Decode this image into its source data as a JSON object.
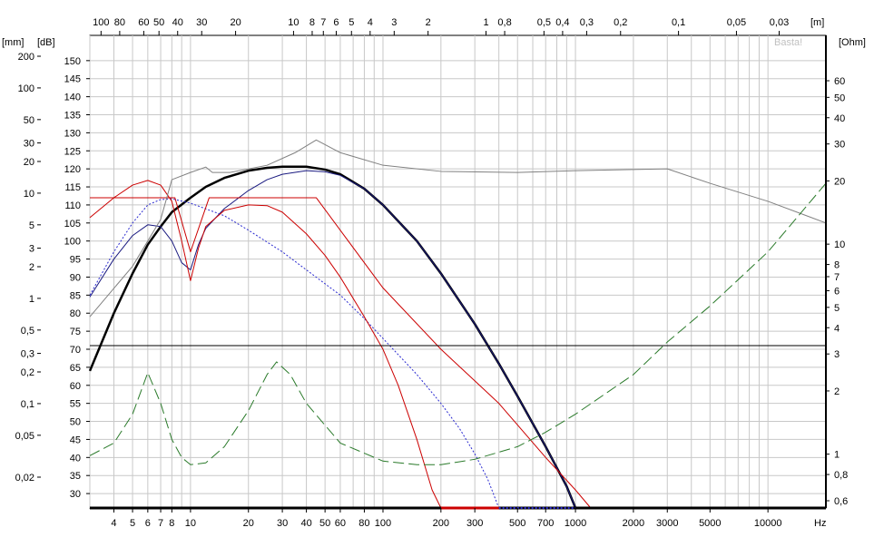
{
  "chart_data": {
    "type": "line",
    "title": "",
    "watermark": "Basta!",
    "axes": {
      "x": {
        "label": "Hz",
        "scale": "log",
        "range": [
          3,
          20000
        ],
        "ticks": [
          {
            "v": 4,
            "t": "4"
          },
          {
            "v": 5,
            "t": "5"
          },
          {
            "v": 6,
            "t": "6"
          },
          {
            "v": 7,
            "t": "7"
          },
          {
            "v": 8,
            "t": "8"
          },
          {
            "v": 10,
            "t": "10"
          },
          {
            "v": 20,
            "t": "20"
          },
          {
            "v": 30,
            "t": "30"
          },
          {
            "v": 40,
            "t": "40"
          },
          {
            "v": 50,
            "t": "50"
          },
          {
            "v": 60,
            "t": "60"
          },
          {
            "v": 80,
            "t": "80"
          },
          {
            "v": 100,
            "t": "100"
          },
          {
            "v": 200,
            "t": "200"
          },
          {
            "v": 300,
            "t": "300"
          },
          {
            "v": 500,
            "t": "500"
          },
          {
            "v": 700,
            "t": "700"
          },
          {
            "v": 1000,
            "t": "1000"
          },
          {
            "v": 2000,
            "t": "2000"
          },
          {
            "v": 3000,
            "t": "3000"
          },
          {
            "v": 5000,
            "t": "5000"
          },
          {
            "v": 10000,
            "t": "10000"
          }
        ]
      },
      "x_top": {
        "label": "[m]",
        "unit_note": "wavelength",
        "ticks": [
          {
            "m": 100,
            "t": "100"
          },
          {
            "m": 80,
            "t": "80"
          },
          {
            "m": 60,
            "t": "60"
          },
          {
            "m": 50,
            "t": "50"
          },
          {
            "m": 40,
            "t": "40"
          },
          {
            "m": 30,
            "t": "30"
          },
          {
            "m": 20,
            "t": "20"
          },
          {
            "m": 10,
            "t": "10"
          },
          {
            "m": 8,
            "t": "8"
          },
          {
            "m": 7,
            "t": "7"
          },
          {
            "m": 6,
            "t": "6"
          },
          {
            "m": 5,
            "t": "5"
          },
          {
            "m": 4,
            "t": "4"
          },
          {
            "m": 3,
            "t": "3"
          },
          {
            "m": 2,
            "t": "2"
          },
          {
            "m": 1,
            "t": "1"
          },
          {
            "m": 0.8,
            "t": "0,8"
          },
          {
            "m": 0.5,
            "t": "0,5"
          },
          {
            "m": 0.4,
            "t": "0,4"
          },
          {
            "m": 0.3,
            "t": "0,3"
          },
          {
            "m": 0.2,
            "t": "0,2"
          },
          {
            "m": 0.1,
            "t": "0,1"
          },
          {
            "m": 0.05,
            "t": "0,05"
          },
          {
            "m": 0.03,
            "t": "0,03"
          }
        ]
      },
      "y_db": {
        "label": "[dB]",
        "range": [
          26,
          157
        ],
        "ticks": [
          {
            "v": 30,
            "t": "30"
          },
          {
            "v": 35,
            "t": "35"
          },
          {
            "v": 40,
            "t": "40"
          },
          {
            "v": 45,
            "t": "45"
          },
          {
            "v": 50,
            "t": "50"
          },
          {
            "v": 55,
            "t": "55"
          },
          {
            "v": 60,
            "t": "60"
          },
          {
            "v": 65,
            "t": "65"
          },
          {
            "v": 70,
            "t": "70"
          },
          {
            "v": 75,
            "t": "75"
          },
          {
            "v": 80,
            "t": "80"
          },
          {
            "v": 85,
            "t": "85"
          },
          {
            "v": 90,
            "t": "90"
          },
          {
            "v": 95,
            "t": "95"
          },
          {
            "v": 100,
            "t": "100"
          },
          {
            "v": 105,
            "t": "105"
          },
          {
            "v": 110,
            "t": "110"
          },
          {
            "v": 115,
            "t": "115"
          },
          {
            "v": 120,
            "t": "120"
          },
          {
            "v": 125,
            "t": "125"
          },
          {
            "v": 130,
            "t": "130"
          },
          {
            "v": 135,
            "t": "135"
          },
          {
            "v": 140,
            "t": "140"
          },
          {
            "v": 145,
            "t": "145"
          },
          {
            "v": 150,
            "t": "150"
          }
        ]
      },
      "y_mm": {
        "label": "[mm]",
        "scale": "log",
        "ticks": [
          {
            "v": 200,
            "t": "200"
          },
          {
            "v": 100,
            "t": "100"
          },
          {
            "v": 50,
            "t": "50"
          },
          {
            "v": 30,
            "t": "30"
          },
          {
            "v": 20,
            "t": "20"
          },
          {
            "v": 10,
            "t": "10"
          },
          {
            "v": 5,
            "t": "5"
          },
          {
            "v": 3,
            "t": "3"
          },
          {
            "v": 2,
            "t": "2"
          },
          {
            "v": 1,
            "t": "1"
          },
          {
            "v": 0.5,
            "t": "0,5"
          },
          {
            "v": 0.3,
            "t": "0,3"
          },
          {
            "v": 0.2,
            "t": "0,2"
          },
          {
            "v": 0.1,
            "t": "0,1"
          },
          {
            "v": 0.05,
            "t": "0,05"
          },
          {
            "v": 0.02,
            "t": "0,02"
          }
        ]
      },
      "y_ohm": {
        "label": "[Ohm]",
        "scale": "log",
        "ticks": [
          {
            "v": 60,
            "t": "60"
          },
          {
            "v": 50,
            "t": "50"
          },
          {
            "v": 40,
            "t": "40"
          },
          {
            "v": 30,
            "t": "30"
          },
          {
            "v": 20,
            "t": "20"
          },
          {
            "v": 10,
            "t": "10"
          },
          {
            "v": 8,
            "t": "8"
          },
          {
            "v": 7,
            "t": "7"
          },
          {
            "v": 6,
            "t": "6"
          },
          {
            "v": 5,
            "t": "5"
          },
          {
            "v": 4,
            "t": "4"
          },
          {
            "v": 3,
            "t": "3"
          },
          {
            "v": 2,
            "t": "2"
          },
          {
            "v": 1,
            "t": "1"
          },
          {
            "v": 0.8,
            "t": "0,8"
          },
          {
            "v": 0.6,
            "t": "0,6"
          }
        ]
      }
    },
    "grid": true,
    "legend": "none",
    "series": [
      {
        "color": "#000000",
        "style": "solid",
        "width": 2.5,
        "axis": "db",
        "points": [
          [
            3,
            64
          ],
          [
            4,
            80
          ],
          [
            5,
            91
          ],
          [
            6,
            99
          ],
          [
            7,
            104
          ],
          [
            8,
            108
          ],
          [
            10,
            112
          ],
          [
            12,
            115
          ],
          [
            15,
            117.5
          ],
          [
            20,
            119.5
          ],
          [
            25,
            120.3
          ],
          [
            30,
            120.6
          ],
          [
            40,
            120.6
          ],
          [
            50,
            119.8
          ],
          [
            60,
            118.5
          ],
          [
            80,
            114.5
          ],
          [
            100,
            110
          ],
          [
            150,
            100
          ],
          [
            200,
            91
          ],
          [
            300,
            77
          ],
          [
            400,
            66
          ],
          [
            500,
            57
          ],
          [
            700,
            43
          ],
          [
            900,
            32
          ],
          [
            1000,
            26
          ]
        ]
      },
      {
        "color": "#1a1a80",
        "style": "solid",
        "width": 1,
        "axis": "db",
        "points": [
          [
            3,
            84.5
          ],
          [
            4,
            95
          ],
          [
            5,
            101.5
          ],
          [
            6,
            104.5
          ],
          [
            7,
            104
          ],
          [
            8,
            100
          ],
          [
            9,
            94
          ],
          [
            10,
            92
          ],
          [
            11,
            99
          ],
          [
            12,
            103.5
          ],
          [
            15,
            109
          ],
          [
            20,
            114
          ],
          [
            25,
            117
          ],
          [
            30,
            118.5
          ],
          [
            40,
            119.5
          ],
          [
            50,
            119.2
          ],
          [
            60,
            118.2
          ],
          [
            80,
            114.5
          ],
          [
            100,
            110
          ],
          [
            150,
            100
          ],
          [
            200,
            91
          ],
          [
            300,
            77
          ],
          [
            400,
            66
          ],
          [
            500,
            57
          ],
          [
            700,
            43
          ],
          [
            900,
            32
          ],
          [
            1000,
            26
          ]
        ]
      },
      {
        "color": "#2a2ad0",
        "style": "dotted",
        "width": 1,
        "axis": "db",
        "points": [
          [
            3,
            85
          ],
          [
            4,
            97
          ],
          [
            5,
            105
          ],
          [
            6,
            110
          ],
          [
            7,
            111.5
          ],
          [
            8,
            111.7
          ],
          [
            10,
            110.5
          ],
          [
            15,
            107
          ],
          [
            20,
            103
          ],
          [
            30,
            97
          ],
          [
            40,
            92
          ],
          [
            60,
            85
          ],
          [
            80,
            78.5
          ],
          [
            100,
            73
          ],
          [
            150,
            63
          ],
          [
            200,
            55
          ],
          [
            250,
            48
          ],
          [
            300,
            41
          ],
          [
            350,
            34
          ],
          [
            400,
            26
          ]
        ]
      },
      {
        "color": "#cc0000",
        "style": "solid",
        "width": 1,
        "axis": "db",
        "points": [
          [
            3,
            106.5
          ],
          [
            4,
            112
          ],
          [
            5,
            115.5
          ],
          [
            6,
            116.8
          ],
          [
            7,
            115.5
          ],
          [
            8,
            111
          ],
          [
            9,
            100
          ],
          [
            10,
            89
          ],
          [
            11,
            98
          ],
          [
            12,
            104
          ],
          [
            15,
            108.5
          ],
          [
            20,
            110
          ],
          [
            25,
            109.8
          ],
          [
            30,
            108
          ],
          [
            40,
            102
          ],
          [
            50,
            96
          ],
          [
            60,
            90
          ],
          [
            80,
            79
          ],
          [
            100,
            70
          ],
          [
            120,
            60
          ],
          [
            150,
            45
          ],
          [
            180,
            31
          ],
          [
            200,
            26
          ]
        ]
      },
      {
        "color": "#cc0000",
        "style": "solid",
        "width": 1,
        "axis": "db",
        "points": [
          [
            3,
            112
          ],
          [
            8.3,
            112
          ],
          [
            10,
            97
          ],
          [
            12.5,
            112
          ],
          [
            45,
            112
          ],
          [
            100,
            87
          ],
          [
            200,
            70
          ],
          [
            400,
            55
          ],
          [
            700,
            40
          ],
          [
            1000,
            31
          ],
          [
            1200,
            26
          ]
        ]
      },
      {
        "color": "#808080",
        "style": "solid",
        "width": 1,
        "axis": "db",
        "points": [
          [
            3,
            79
          ],
          [
            5,
            93
          ],
          [
            6,
            100
          ],
          [
            7,
            106
          ],
          [
            8,
            117
          ],
          [
            10,
            119
          ],
          [
            12,
            120.5
          ],
          [
            13,
            119
          ],
          [
            16,
            119
          ],
          [
            25,
            121
          ],
          [
            35,
            124.5
          ],
          [
            45,
            128
          ],
          [
            60,
            124.5
          ],
          [
            100,
            121
          ],
          [
            200,
            119.3
          ],
          [
            500,
            119
          ],
          [
            1000,
            119.5
          ],
          [
            3000,
            120
          ],
          [
            5000,
            116
          ],
          [
            10000,
            111
          ],
          [
            20000,
            105
          ]
        ]
      },
      {
        "color": "#2a7a2a",
        "style": "dashed",
        "width": 1,
        "axis": "db",
        "points": [
          [
            3,
            40.5
          ],
          [
            4,
            44
          ],
          [
            5,
            52
          ],
          [
            6,
            63.5
          ],
          [
            7,
            55
          ],
          [
            8,
            45
          ],
          [
            9,
            40
          ],
          [
            10,
            38
          ],
          [
            12,
            38.5
          ],
          [
            15,
            43
          ],
          [
            20,
            53
          ],
          [
            25,
            63
          ],
          [
            28,
            66.5
          ],
          [
            33,
            63
          ],
          [
            40,
            55
          ],
          [
            60,
            44
          ],
          [
            100,
            39
          ],
          [
            150,
            38
          ],
          [
            200,
            38
          ],
          [
            300,
            39.5
          ],
          [
            500,
            43
          ],
          [
            700,
            47
          ],
          [
            1000,
            52
          ],
          [
            2000,
            63
          ],
          [
            3000,
            72
          ],
          [
            5000,
            82
          ],
          [
            10000,
            97
          ],
          [
            20000,
            116
          ]
        ]
      },
      {
        "color": "#000000",
        "style": "solid",
        "width": 1,
        "axis": "db",
        "points": [
          [
            3,
            71
          ],
          [
            20000,
            71
          ]
        ]
      },
      {
        "color": "#000000",
        "style": "solid",
        "width": 3,
        "axis": "db",
        "points": [
          [
            3,
            26
          ],
          [
            20000,
            26
          ]
        ]
      },
      {
        "color": "#cc0000",
        "style": "solid",
        "width": 3,
        "axis": "db",
        "points": [
          [
            200,
            26
          ],
          [
            400,
            26
          ]
        ]
      },
      {
        "color": "#2a2ad0",
        "style": "dotted",
        "width": 2,
        "axis": "db",
        "points": [
          [
            400,
            26
          ],
          [
            1000,
            26
          ]
        ]
      }
    ]
  }
}
